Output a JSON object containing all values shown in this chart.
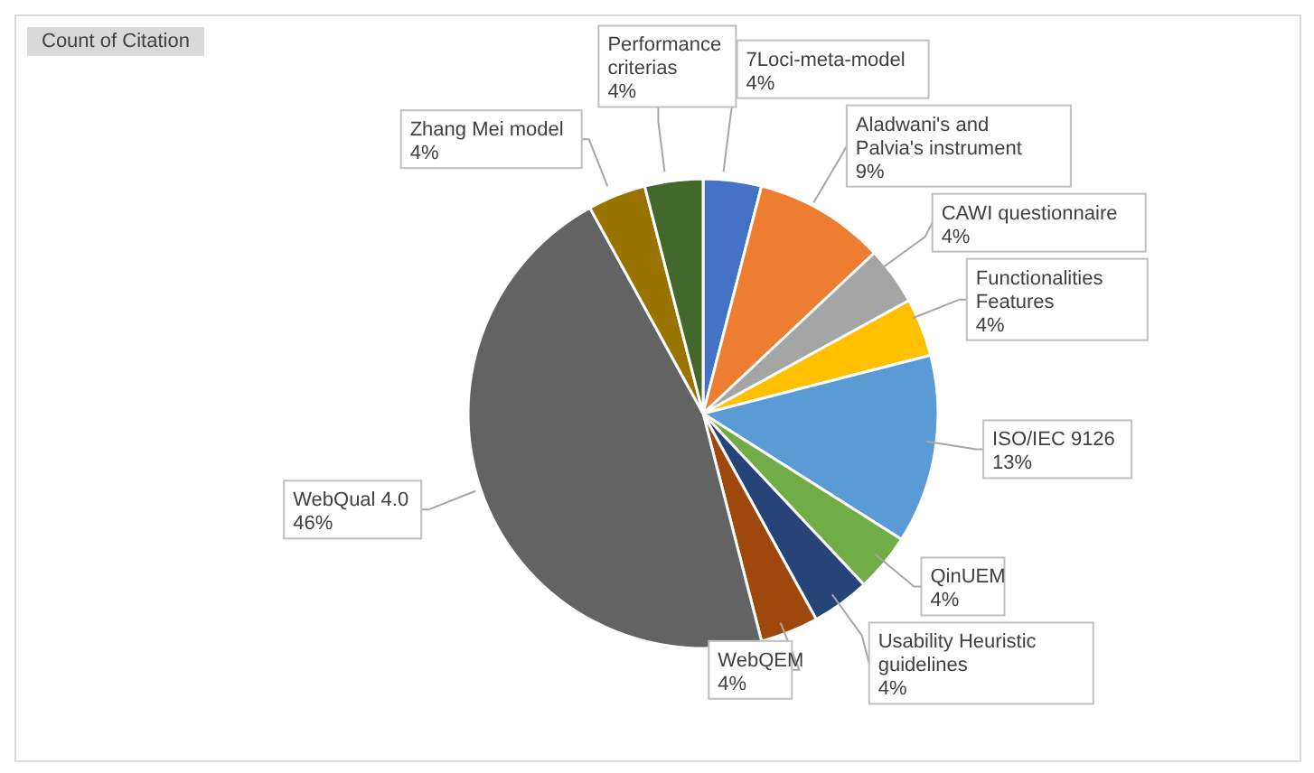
{
  "chart_data": {
    "type": "pie",
    "title": "Count of Citation",
    "categories": [
      "7Loci-meta-model",
      "Aladwani's and Palvia's instrument",
      "CAWI questionnaire",
      "Functionalities Features",
      "ISO/IEC 9126",
      "QinUEM",
      "Usability Heuristic guidelines",
      "WebQEM",
      "WebQual 4.0",
      "Zhang Mei model",
      "Performance criterias"
    ],
    "values": [
      4,
      9,
      4,
      4,
      13,
      4,
      4,
      4,
      46,
      4,
      4
    ],
    "value_labels": [
      "4%",
      "9%",
      "4%",
      "4%",
      "13%",
      "4%",
      "4%",
      "4%",
      "46%",
      "4%",
      "4%"
    ],
    "colors": [
      "#4472c4",
      "#ed7d31",
      "#a5a5a5",
      "#ffc000",
      "#5b9bd5",
      "#70ad47",
      "#264478",
      "#9e480e",
      "#636363",
      "#997300",
      "#43682b"
    ],
    "legend": false
  }
}
